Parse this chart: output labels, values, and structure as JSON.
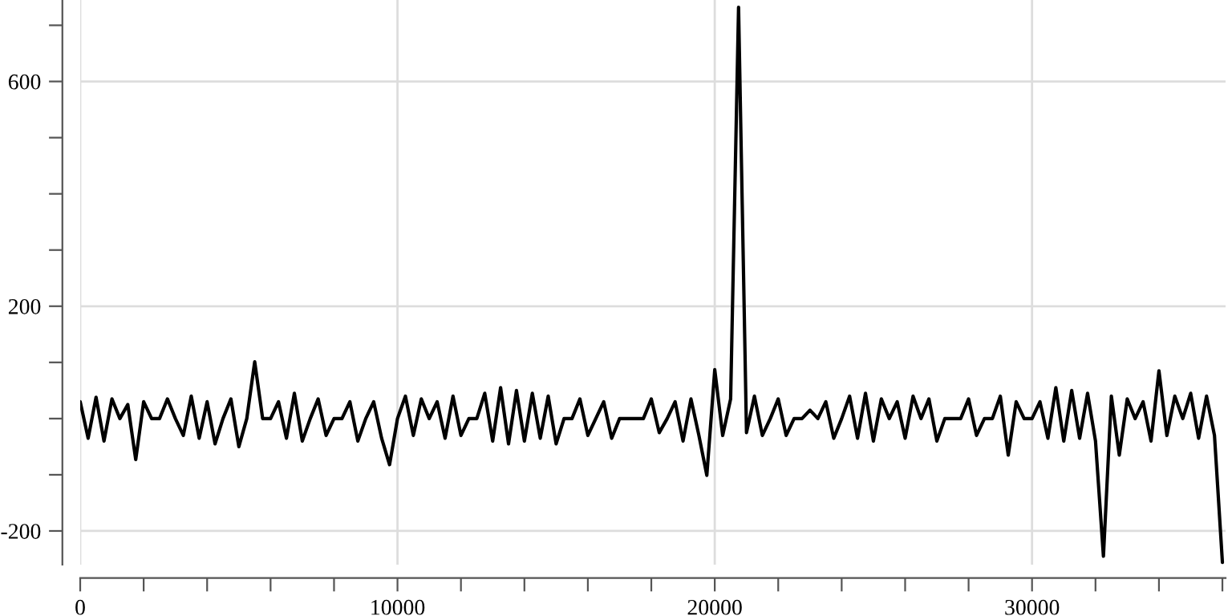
{
  "chart_data": {
    "type": "line",
    "xlim": [
      0,
      36100
    ],
    "ylim": [
      -260,
      745
    ],
    "xticks": [
      0,
      {
        "value": 2000,
        "label": null
      },
      {
        "value": 4000,
        "label": null
      },
      {
        "value": 6000,
        "label": null
      },
      {
        "value": 8000,
        "label": null
      },
      10000,
      {
        "value": 12000,
        "label": null
      },
      {
        "value": 14000,
        "label": null
      },
      {
        "value": 16000,
        "label": null
      },
      {
        "value": 18000,
        "label": null
      },
      20000,
      {
        "value": 22000,
        "label": null
      },
      {
        "value": 24000,
        "label": null
      },
      {
        "value": 26000,
        "label": null
      },
      {
        "value": 28000,
        "label": null
      },
      30000,
      {
        "value": 32000,
        "label": null
      },
      {
        "value": 34000,
        "label": null
      },
      {
        "value": 36000,
        "label": null
      }
    ],
    "yticks": [
      {
        "value": 700,
        "label": null
      },
      600,
      {
        "value": 500,
        "label": null
      },
      {
        "value": 400,
        "label": null
      },
      {
        "value": 300,
        "label": null
      },
      200,
      {
        "value": 100,
        "label": null
      },
      {
        "value": 0,
        "label": null
      },
      {
        "value": -100,
        "label": null
      },
      -200
    ],
    "grid": true,
    "marker": "none",
    "line_style": "solid",
    "series": [
      {
        "color": "#000000",
        "x": [
          0,
          250,
          500,
          750,
          1000,
          1250,
          1500,
          1750,
          2000,
          2250,
          2500,
          2750,
          3000,
          3250,
          3500,
          3750,
          4000,
          4250,
          4500,
          4750,
          5000,
          5250,
          5500,
          5750,
          6000,
          6250,
          6500,
          6750,
          7000,
          7250,
          7500,
          7750,
          8000,
          8250,
          8500,
          8750,
          9000,
          9250,
          9500,
          9750,
          10000,
          10250,
          10500,
          10750,
          11000,
          11250,
          11500,
          11750,
          12000,
          12250,
          12500,
          12750,
          13000,
          13250,
          13500,
          13750,
          14000,
          14250,
          14500,
          14750,
          15000,
          15250,
          15500,
          15750,
          16000,
          16250,
          16500,
          16750,
          17000,
          17250,
          17500,
          17750,
          18000,
          18250,
          18500,
          18750,
          19000,
          19250,
          19500,
          19750,
          20000,
          20250,
          20500,
          20750,
          21000,
          21250,
          21500,
          21750,
          22000,
          22250,
          22500,
          22750,
          23000,
          23250,
          23500,
          23750,
          24000,
          24250,
          24500,
          24750,
          25000,
          25250,
          25500,
          25750,
          26000,
          26250,
          26500,
          26750,
          27000,
          27250,
          27500,
          27750,
          28000,
          28250,
          28500,
          28750,
          29000,
          29250,
          29500,
          29750,
          30000,
          30250,
          30500,
          30750,
          31000,
          31250,
          31500,
          31750,
          32000,
          32250,
          32500,
          32750,
          33000,
          33250,
          33500,
          33750,
          34000,
          34250,
          34500,
          34750,
          35000,
          35250,
          35500,
          35750,
          36000
        ],
        "values": [
          30,
          -35,
          38,
          -40,
          35,
          0,
          25,
          -73,
          30,
          0,
          0,
          35,
          0,
          -30,
          40,
          -35,
          30,
          -45,
          0,
          35,
          -50,
          0,
          101,
          0,
          0,
          30,
          -35,
          45,
          -40,
          0,
          35,
          -30,
          0,
          0,
          30,
          -40,
          0,
          30,
          -35,
          -82,
          0,
          40,
          -30,
          35,
          0,
          30,
          -35,
          40,
          -30,
          0,
          0,
          45,
          -40,
          55,
          -45,
          50,
          -40,
          45,
          -35,
          40,
          -45,
          0,
          0,
          35,
          -30,
          0,
          30,
          -35,
          0,
          0,
          0,
          0,
          35,
          -25,
          0,
          30,
          -40,
          35,
          -30,
          -101,
          87,
          -30,
          35,
          732,
          -25,
          40,
          -30,
          0,
          35,
          -30,
          0,
          0,
          15,
          0,
          30,
          -35,
          0,
          40,
          -35,
          45,
          -40,
          35,
          0,
          30,
          -35,
          40,
          0,
          35,
          -40,
          0,
          0,
          0,
          35,
          -30,
          0,
          0,
          40,
          -65,
          30,
          0,
          0,
          30,
          -35,
          55,
          -40,
          50,
          -35,
          45,
          -40,
          -245,
          40,
          -65,
          35,
          0,
          30,
          -40,
          85,
          -30,
          40,
          0,
          45,
          -35,
          40,
          -30,
          -256
        ]
      }
    ]
  }
}
